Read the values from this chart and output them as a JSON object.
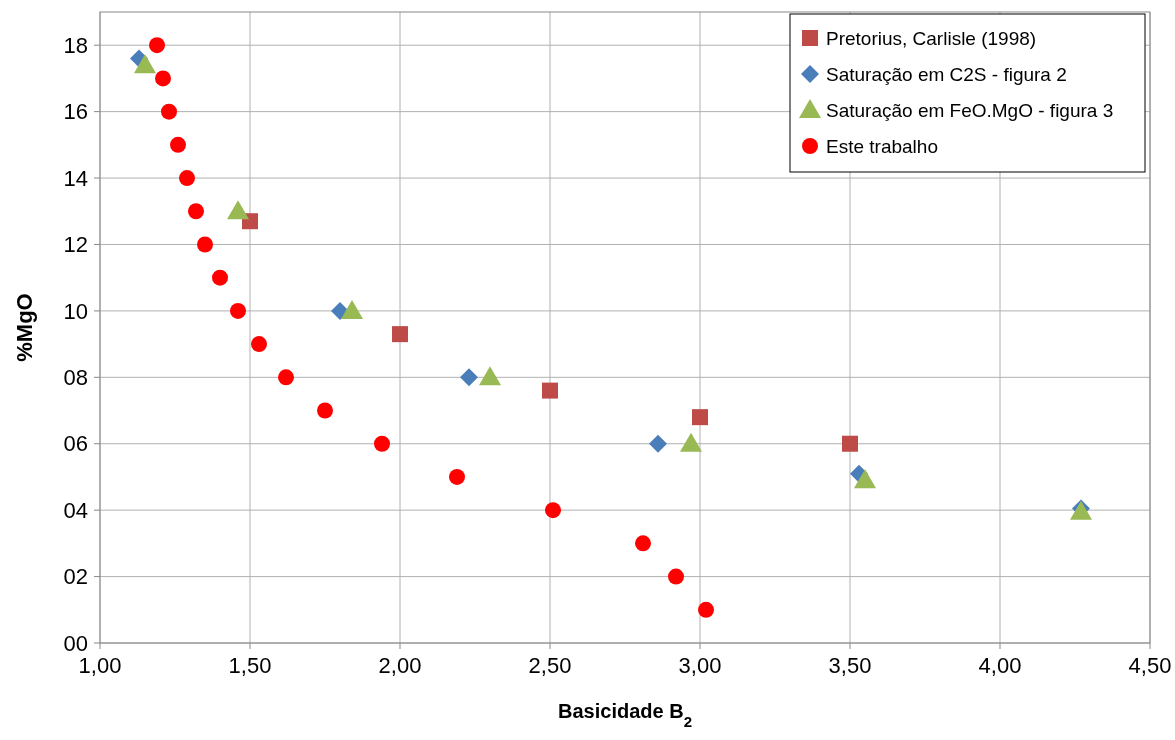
{
  "chart_data": {
    "type": "scatter",
    "xlabel": "Basicidade  B$_{2}$",
    "ylabel": "%MgO",
    "xlim": [
      1,
      4.5
    ],
    "ylim": [
      0,
      19
    ],
    "xticks": [
      {
        "value": 1,
        "label": "1,00"
      },
      {
        "value": 1.5,
        "label": "1,50"
      },
      {
        "value": 2,
        "label": "2,00"
      },
      {
        "value": 2.5,
        "label": "2,50"
      },
      {
        "value": 3,
        "label": "3,00"
      },
      {
        "value": 3.5,
        "label": "3,50"
      },
      {
        "value": 4,
        "label": "4,00"
      },
      {
        "value": 4.5,
        "label": "4,50"
      }
    ],
    "yticks": [
      {
        "value": 0,
        "label": "00"
      },
      {
        "value": 2,
        "label": "02"
      },
      {
        "value": 4,
        "label": "04"
      },
      {
        "value": 6,
        "label": "06"
      },
      {
        "value": 8,
        "label": "08"
      },
      {
        "value": 10,
        "label": "10"
      },
      {
        "value": 12,
        "label": "12"
      },
      {
        "value": 14,
        "label": "14"
      },
      {
        "value": 16,
        "label": "16"
      },
      {
        "value": 18,
        "label": "18"
      }
    ],
    "grid": true,
    "legend": "top right",
    "series": [
      {
        "name": "Pretorius, Carlisle (1998)",
        "color": "#be4b48",
        "marker": "square",
        "x": [
          1.5,
          2.0,
          2.5,
          3.0,
          3.5
        ],
        "values": [
          12.7,
          9.3,
          7.6,
          6.8,
          6.0
        ]
      },
      {
        "name": "Saturação em C2S - figura 2",
        "color": "#4a7ebb",
        "marker": "diamond",
        "x": [
          1.13,
          1.8,
          2.23,
          2.86,
          3.53,
          4.27
        ],
        "values": [
          17.6,
          10,
          8,
          6,
          5.1,
          4.05
        ]
      },
      {
        "name": "Saturação em FeO.MgO - figura 3",
        "color": "#98b954",
        "marker": "triangle",
        "x": [
          1.15,
          1.46,
          1.84,
          2.3,
          2.97,
          3.55,
          4.27
        ],
        "values": [
          17.4,
          13,
          10,
          8,
          6,
          4.9,
          3.95
        ]
      },
      {
        "name": "Este trabalho",
        "color": "#ff0000",
        "marker": "circle",
        "x": [
          1.19,
          1.21,
          1.23,
          1.26,
          1.29,
          1.32,
          1.35,
          1.4,
          1.46,
          1.53,
          1.62,
          1.75,
          1.94,
          2.19,
          2.51,
          2.81,
          2.92,
          3.02
        ],
        "values": [
          18,
          17,
          16,
          15,
          14,
          13,
          12,
          11,
          10,
          9,
          8,
          7,
          6,
          5,
          4,
          3,
          2,
          1
        ]
      }
    ]
  }
}
